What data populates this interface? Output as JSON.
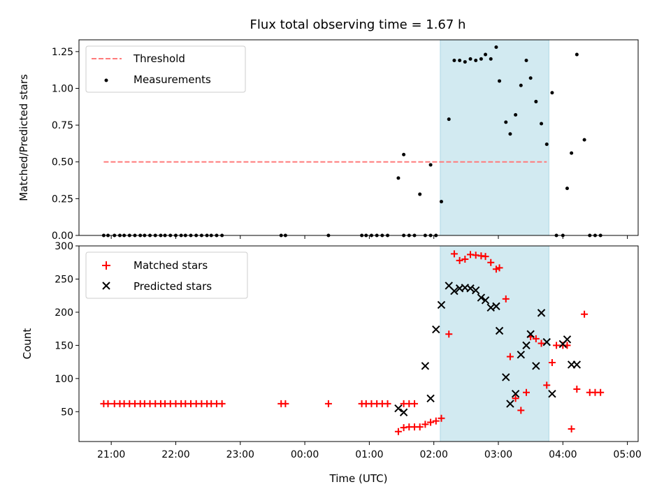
{
  "chart_data": {
    "title": "Flux total observing time = 1.67 h",
    "xlabel": "Time (UTC)",
    "x_ticks": [
      "21:00",
      "22:00",
      "23:00",
      "00:00",
      "01:00",
      "02:00",
      "03:00",
      "04:00",
      "05:00"
    ],
    "x_tick_minutes": [
      0,
      60,
      120,
      180,
      240,
      300,
      360,
      420,
      480
    ],
    "xlim_minutes": [
      -30,
      490
    ],
    "highlight_span": {
      "start": "02:06",
      "end": "03:47",
      "start_minutes": 306,
      "end_minutes": 407,
      "color": "#add8e6"
    },
    "panels": [
      {
        "type": "scatter",
        "ylabel": "Matched/Predicted stars",
        "ylim": [
          0,
          1.33
        ],
        "yticks": [
          "0.00",
          "0.25",
          "0.50",
          "0.75",
          "1.00",
          "1.25"
        ],
        "ytick_values": [
          0,
          0.25,
          0.5,
          0.75,
          1.0,
          1.25
        ],
        "legend": {
          "placement": "upper-left",
          "entries": [
            "Threshold",
            "Measurements"
          ]
        },
        "threshold": {
          "name": "Threshold",
          "value": 0.5,
          "x_range_minutes": [
            -7,
            405
          ],
          "color": "#ff7b7b"
        },
        "measurements": {
          "name": "Measurements",
          "color": "#000000",
          "x_minutes": [
            -7,
            -3,
            3,
            8,
            12,
            17,
            22,
            27,
            31,
            36,
            41,
            46,
            50,
            55,
            60,
            65,
            69,
            74,
            79,
            84,
            89,
            93,
            98,
            103,
            158,
            162,
            202,
            233,
            237,
            242,
            247,
            252,
            257,
            272,
            277,
            282,
            292,
            297,
            302,
            267,
            272,
            287,
            297,
            307,
            314,
            319,
            324,
            329,
            334,
            339,
            344,
            348,
            353,
            358,
            361,
            367,
            371,
            376,
            381,
            386,
            390,
            395,
            400,
            405,
            410,
            414,
            420,
            424,
            428,
            433,
            440,
            445,
            450,
            455
          ],
          "y": [
            0,
            0,
            0,
            0,
            0,
            0,
            0,
            0,
            0,
            0,
            0,
            0,
            0,
            0,
            0,
            0,
            0,
            0,
            0,
            0,
            0,
            0,
            0,
            0,
            0,
            0,
            0,
            0,
            0,
            0,
            0,
            0,
            0,
            0,
            0,
            0,
            0,
            0,
            0,
            0.39,
            0.55,
            0.28,
            0.48,
            0.23,
            0.79,
            1.19,
            1.19,
            1.18,
            1.2,
            1.19,
            1.2,
            1.23,
            1.2,
            1.28,
            1.05,
            0.77,
            0.69,
            0.82,
            1.02,
            1.19,
            1.07,
            0.91,
            0.76,
            0.62,
            0.97,
            0,
            0,
            0.32,
            0.56,
            1.23,
            0.65,
            0,
            0,
            0
          ]
        }
      },
      {
        "type": "scatter",
        "ylabel": "Count",
        "ylim": [
          5,
          300
        ],
        "yticks": [
          "50",
          "100",
          "150",
          "200",
          "250",
          "300"
        ],
        "ytick_values": [
          50,
          100,
          150,
          200,
          250,
          300
        ],
        "legend": {
          "placement": "upper-left",
          "entries": [
            "Matched stars",
            "Predicted stars"
          ]
        },
        "series": [
          {
            "name": "Matched stars",
            "marker": "+",
            "color": "#ff0000",
            "x_minutes": [
              -7,
              -3,
              3,
              8,
              12,
              17,
              22,
              27,
              31,
              36,
              41,
              46,
              50,
              55,
              60,
              65,
              69,
              74,
              79,
              84,
              89,
              93,
              98,
              103,
              158,
              162,
              202,
              233,
              237,
              242,
              247,
              252,
              257,
              272,
              277,
              282,
              267,
              272,
              277,
              282,
              287,
              292,
              297,
              302,
              307,
              314,
              319,
              324,
              329,
              334,
              339,
              344,
              348,
              353,
              358,
              361,
              367,
              371,
              376,
              381,
              386,
              390,
              395,
              400,
              405,
              410,
              414,
              420,
              424,
              428,
              433,
              440,
              445,
              450,
              455
            ],
            "y": [
              62,
              62,
              62,
              62,
              62,
              62,
              62,
              62,
              62,
              62,
              62,
              62,
              62,
              62,
              62,
              62,
              62,
              62,
              62,
              62,
              62,
              62,
              62,
              62,
              62,
              62,
              62,
              62,
              62,
              62,
              62,
              62,
              62,
              62,
              62,
              62,
              20,
              26,
              27,
              27,
              27,
              31,
              34,
              36,
              40,
              167,
              288,
              278,
              280,
              287,
              286,
              285,
              284,
              275,
              265,
              267,
              220,
              133,
              70,
              52,
              79,
              163,
              160,
              153,
              90,
              124,
              150,
              150,
              150,
              24,
              84,
              197,
              79,
              79,
              79
            ]
          },
          {
            "name": "Predicted stars",
            "marker": "x",
            "color": "#000000",
            "x_minutes": [
              267,
              272,
              292,
              297,
              302,
              307,
              314,
              319,
              324,
              329,
              334,
              339,
              344,
              348,
              353,
              358,
              361,
              367,
              371,
              376,
              381,
              386,
              390,
              395,
              400,
              405,
              410,
              420,
              424,
              428,
              433
            ],
            "y": [
              55,
              49,
              119,
              70,
              174,
              211,
              240,
              232,
              236,
              237,
              236,
              233,
              222,
              218,
              207,
              209,
              172,
              102,
              62,
              77,
              136,
              150,
              167,
              119,
              199,
              155,
              77,
              152,
              159,
              121,
              121
            ]
          }
        ]
      }
    ]
  }
}
